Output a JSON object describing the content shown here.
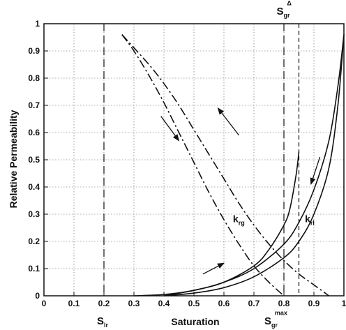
{
  "chart_data": {
    "type": "line",
    "title": "",
    "xlabel": "Saturation",
    "ylabel": "Relative Permeability",
    "xlim": [
      0,
      1
    ],
    "ylim": [
      0,
      1
    ],
    "grid": true,
    "x_ticks": [
      "0",
      "0.1",
      "0.2",
      "0.3",
      "0.4",
      "0.5",
      "0.6",
      "0.7",
      "0.8",
      "0.9",
      "1"
    ],
    "y_ticks": [
      "0",
      "0.1",
      "0.2",
      "0.3",
      "0.4",
      "0.5",
      "0.6",
      "0.7",
      "0.8",
      "0.9",
      "1"
    ],
    "series": [
      {
        "style": "dash-dot",
        "points": [
          [
            0.26,
            0.96
          ],
          [
            0.3,
            0.9
          ],
          [
            0.35,
            0.81
          ],
          [
            0.4,
            0.71
          ],
          [
            0.45,
            0.6
          ],
          [
            0.5,
            0.49
          ],
          [
            0.55,
            0.38
          ],
          [
            0.6,
            0.28
          ],
          [
            0.65,
            0.19
          ],
          [
            0.7,
            0.11
          ],
          [
            0.75,
            0.05
          ],
          [
            0.8,
            0.0
          ]
        ]
      },
      {
        "style": "dash-dot",
        "points": [
          [
            0.26,
            0.96
          ],
          [
            0.35,
            0.85
          ],
          [
            0.4,
            0.78
          ],
          [
            0.45,
            0.7
          ],
          [
            0.5,
            0.61
          ],
          [
            0.55,
            0.52
          ],
          [
            0.6,
            0.43
          ],
          [
            0.65,
            0.34
          ],
          [
            0.7,
            0.26
          ],
          [
            0.75,
            0.19
          ],
          [
            0.8,
            0.13
          ],
          [
            0.85,
            0.08
          ],
          [
            0.9,
            0.04
          ],
          [
            0.95,
            0.0
          ]
        ]
      },
      {
        "style": "solid",
        "points": [
          [
            0.4,
            0.0
          ],
          [
            0.5,
            0.02
          ],
          [
            0.6,
            0.05
          ],
          [
            0.7,
            0.11
          ],
          [
            0.75,
            0.17
          ],
          [
            0.8,
            0.26
          ],
          [
            0.82,
            0.32
          ],
          [
            0.84,
            0.44
          ],
          [
            0.85,
            0.53
          ]
        ]
      },
      {
        "style": "solid",
        "points": [
          [
            0.3,
            0.0
          ],
          [
            0.4,
            0.005
          ],
          [
            0.5,
            0.02
          ],
          [
            0.6,
            0.05
          ],
          [
            0.7,
            0.1
          ],
          [
            0.8,
            0.19
          ],
          [
            0.85,
            0.27
          ],
          [
            0.9,
            0.39
          ],
          [
            0.95,
            0.57
          ],
          [
            0.98,
            0.77
          ],
          [
            1.0,
            0.96
          ]
        ]
      },
      {
        "style": "solid",
        "points": [
          [
            0.4,
            0.0
          ],
          [
            0.5,
            0.01
          ],
          [
            0.6,
            0.03
          ],
          [
            0.7,
            0.07
          ],
          [
            0.8,
            0.14
          ],
          [
            0.85,
            0.2
          ],
          [
            0.9,
            0.3
          ],
          [
            0.95,
            0.47
          ],
          [
            0.98,
            0.7
          ],
          [
            1.0,
            0.96
          ]
        ]
      }
    ],
    "vlines": [
      {
        "x": 0.2,
        "style": "long-dash"
      },
      {
        "x": 0.8,
        "style": "long-dash"
      },
      {
        "x": 0.85,
        "style": "short-dash"
      }
    ],
    "annotations": {
      "krg": {
        "main": "k",
        "sub": "rg",
        "x": 0.63,
        "y": 0.27
      },
      "krl": {
        "main": "k",
        "sub": "rl",
        "x": 0.87,
        "y": 0.27
      },
      "slr": {
        "main": "S",
        "sub": "lr",
        "x": 0.2
      },
      "sgr_max": {
        "main": "S",
        "sub": "gr",
        "sup": "max",
        "x": 0.8
      },
      "sgr_delta": {
        "main": "S",
        "sub": "gr",
        "sup": "Δ",
        "x": 0.85
      }
    },
    "arrows": [
      {
        "from": [
          0.39,
          0.66
        ],
        "to": [
          0.45,
          0.57
        ]
      },
      {
        "from": [
          0.65,
          0.59
        ],
        "to": [
          0.58,
          0.69
        ]
      },
      {
        "from": [
          0.92,
          0.51
        ],
        "to": [
          0.89,
          0.41
        ]
      },
      {
        "from": [
          0.53,
          0.08
        ],
        "to": [
          0.6,
          0.12
        ]
      }
    ]
  }
}
